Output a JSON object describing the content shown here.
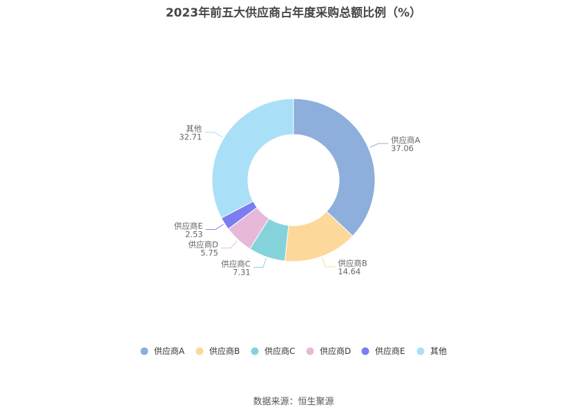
{
  "title": "2023年前五大供应商占年度采购总额比例（%）",
  "source": "数据来源：恒生聚源",
  "chart_data": {
    "type": "pie",
    "title": "2023年前五大供应商占年度采购总额比例（%）",
    "donut": true,
    "legend": "bottom",
    "categories": [
      "供应商A",
      "供应商B",
      "供应商C",
      "供应商D",
      "供应商E",
      "其他"
    ],
    "values": [
      37.06,
      14.64,
      7.31,
      5.75,
      2.53,
      32.71
    ],
    "value_labels": [
      "37.06",
      "14.64",
      "7.31",
      "5.75",
      "2.53",
      "32.71"
    ],
    "colors": [
      "#8eaedb",
      "#fdd89a",
      "#85d3da",
      "#e7b9d9",
      "#7a7ef0",
      "#aadff8"
    ]
  }
}
